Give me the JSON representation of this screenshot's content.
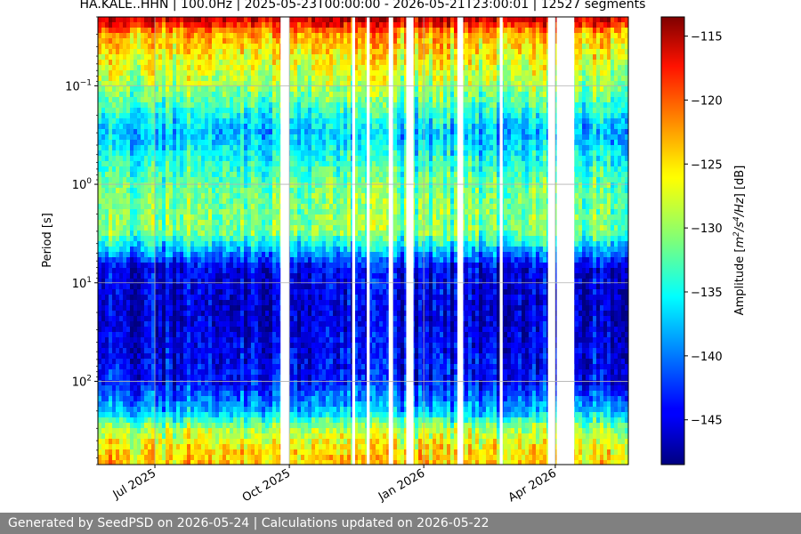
{
  "footer_text": "Generated by SeedPSD on 2026-05-24 | Calculations updated on 2026-05-22",
  "chart_data": {
    "type": "heatmap",
    "title": "HA.KALE..HHN | 100.0Hz | 2025-05-23T00:00:00 - 2026-05-21T23:00:01 | 12527 segments",
    "ylabel": "Period [s]",
    "xlabel": "",
    "x_range": [
      "2025-05-23",
      "2026-05-21"
    ],
    "x_ticks": [
      {
        "date": "2025-07-01",
        "label": "Jul 2025"
      },
      {
        "date": "2025-10-01",
        "label": "Oct 2025"
      },
      {
        "date": "2026-01-01",
        "label": "Jan 2026"
      },
      {
        "date": "2026-04-01",
        "label": "Apr 2026"
      }
    ],
    "y_scale": "log",
    "y_inverted": true,
    "y_range_seconds": [
      0.02,
      700
    ],
    "y_ticks": [
      {
        "value": 0.1,
        "base": "10",
        "exp": "−1"
      },
      {
        "value": 1,
        "base": "10",
        "exp": "0"
      },
      {
        "value": 10,
        "base": "10",
        "exp": "1"
      },
      {
        "value": 100,
        "base": "10",
        "exp": "2"
      }
    ],
    "grid": true,
    "colormap": "jet",
    "colorbar": {
      "label_prefix": "Amplitude [",
      "label_mid1": "m",
      "label_sup1": "2",
      "label_mid2": "/s",
      "label_sup2": "4",
      "label_mid3": "/Hz",
      "label_suffix": "] [dB]",
      "range": [
        -148.5,
        -113.5
      ],
      "ticks": [
        -115,
        -120,
        -125,
        -130,
        -135,
        -140,
        -145
      ],
      "tick_labels": [
        "−115",
        "−120",
        "−125",
        "−130",
        "−135",
        "−140",
        "−145"
      ]
    },
    "data_gaps": [
      [
        "2025-09-25",
        "2025-10-01"
      ],
      [
        "2025-11-13",
        "2025-11-15"
      ],
      [
        "2025-11-23",
        "2025-11-25"
      ],
      [
        "2025-12-08",
        "2025-12-11"
      ],
      [
        "2025-12-20",
        "2025-12-25"
      ],
      [
        "2026-01-24",
        "2026-01-28"
      ],
      [
        "2026-02-22",
        "2026-02-24"
      ],
      [
        "2026-03-27",
        "2026-04-01"
      ],
      [
        "2026-04-02",
        "2026-04-14"
      ]
    ],
    "period_profile_db": [
      {
        "period": 0.02,
        "db": -115
      },
      {
        "period": 0.03,
        "db": -124
      },
      {
        "period": 0.05,
        "db": -127
      },
      {
        "period": 0.1,
        "db": -130
      },
      {
        "period": 0.3,
        "db": -138
      },
      {
        "period": 1,
        "db": -132
      },
      {
        "period": 3,
        "db": -131
      },
      {
        "period": 7,
        "db": -145
      },
      {
        "period": 20,
        "db": -146
      },
      {
        "period": 100,
        "db": -144
      },
      {
        "period": 200,
        "db": -138
      },
      {
        "period": 300,
        "db": -130
      },
      {
        "period": 500,
        "db": -126
      },
      {
        "period": 700,
        "db": -125
      }
    ]
  }
}
